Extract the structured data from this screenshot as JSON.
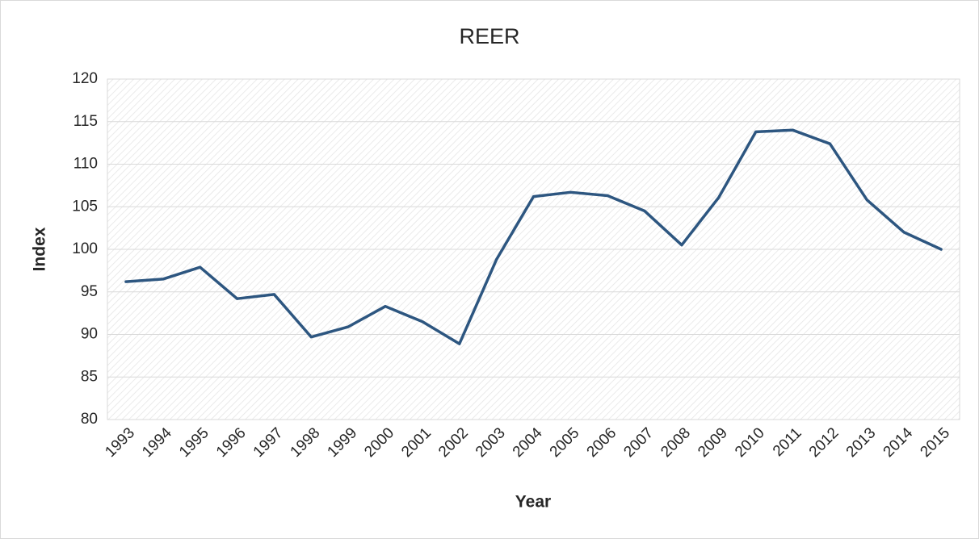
{
  "chart_data": {
    "type": "line",
    "title": "REER",
    "x_label": "Year",
    "y_label": "Index",
    "categories": [
      "1993",
      "1994",
      "1995",
      "1996",
      "1997",
      "1998",
      "1999",
      "2000",
      "2001",
      "2002",
      "2003",
      "2004",
      "2005",
      "2006",
      "2007",
      "2008",
      "2009",
      "2010",
      "2011",
      "2012",
      "2013",
      "2014",
      "2015"
    ],
    "series": [
      {
        "name": "REER",
        "color": "#2d5680",
        "values": [
          96.2,
          96.5,
          97.9,
          94.2,
          94.7,
          89.7,
          90.9,
          93.3,
          91.5,
          88.9,
          98.8,
          106.2,
          106.7,
          106.3,
          104.5,
          100.5,
          106.1,
          113.8,
          114.0,
          112.4,
          105.8,
          102.0,
          100.0
        ]
      }
    ],
    "ylim": [
      80,
      120
    ],
    "yticks": [
      80,
      85,
      90,
      95,
      100,
      105,
      110,
      115,
      120
    ],
    "grid": true
  }
}
